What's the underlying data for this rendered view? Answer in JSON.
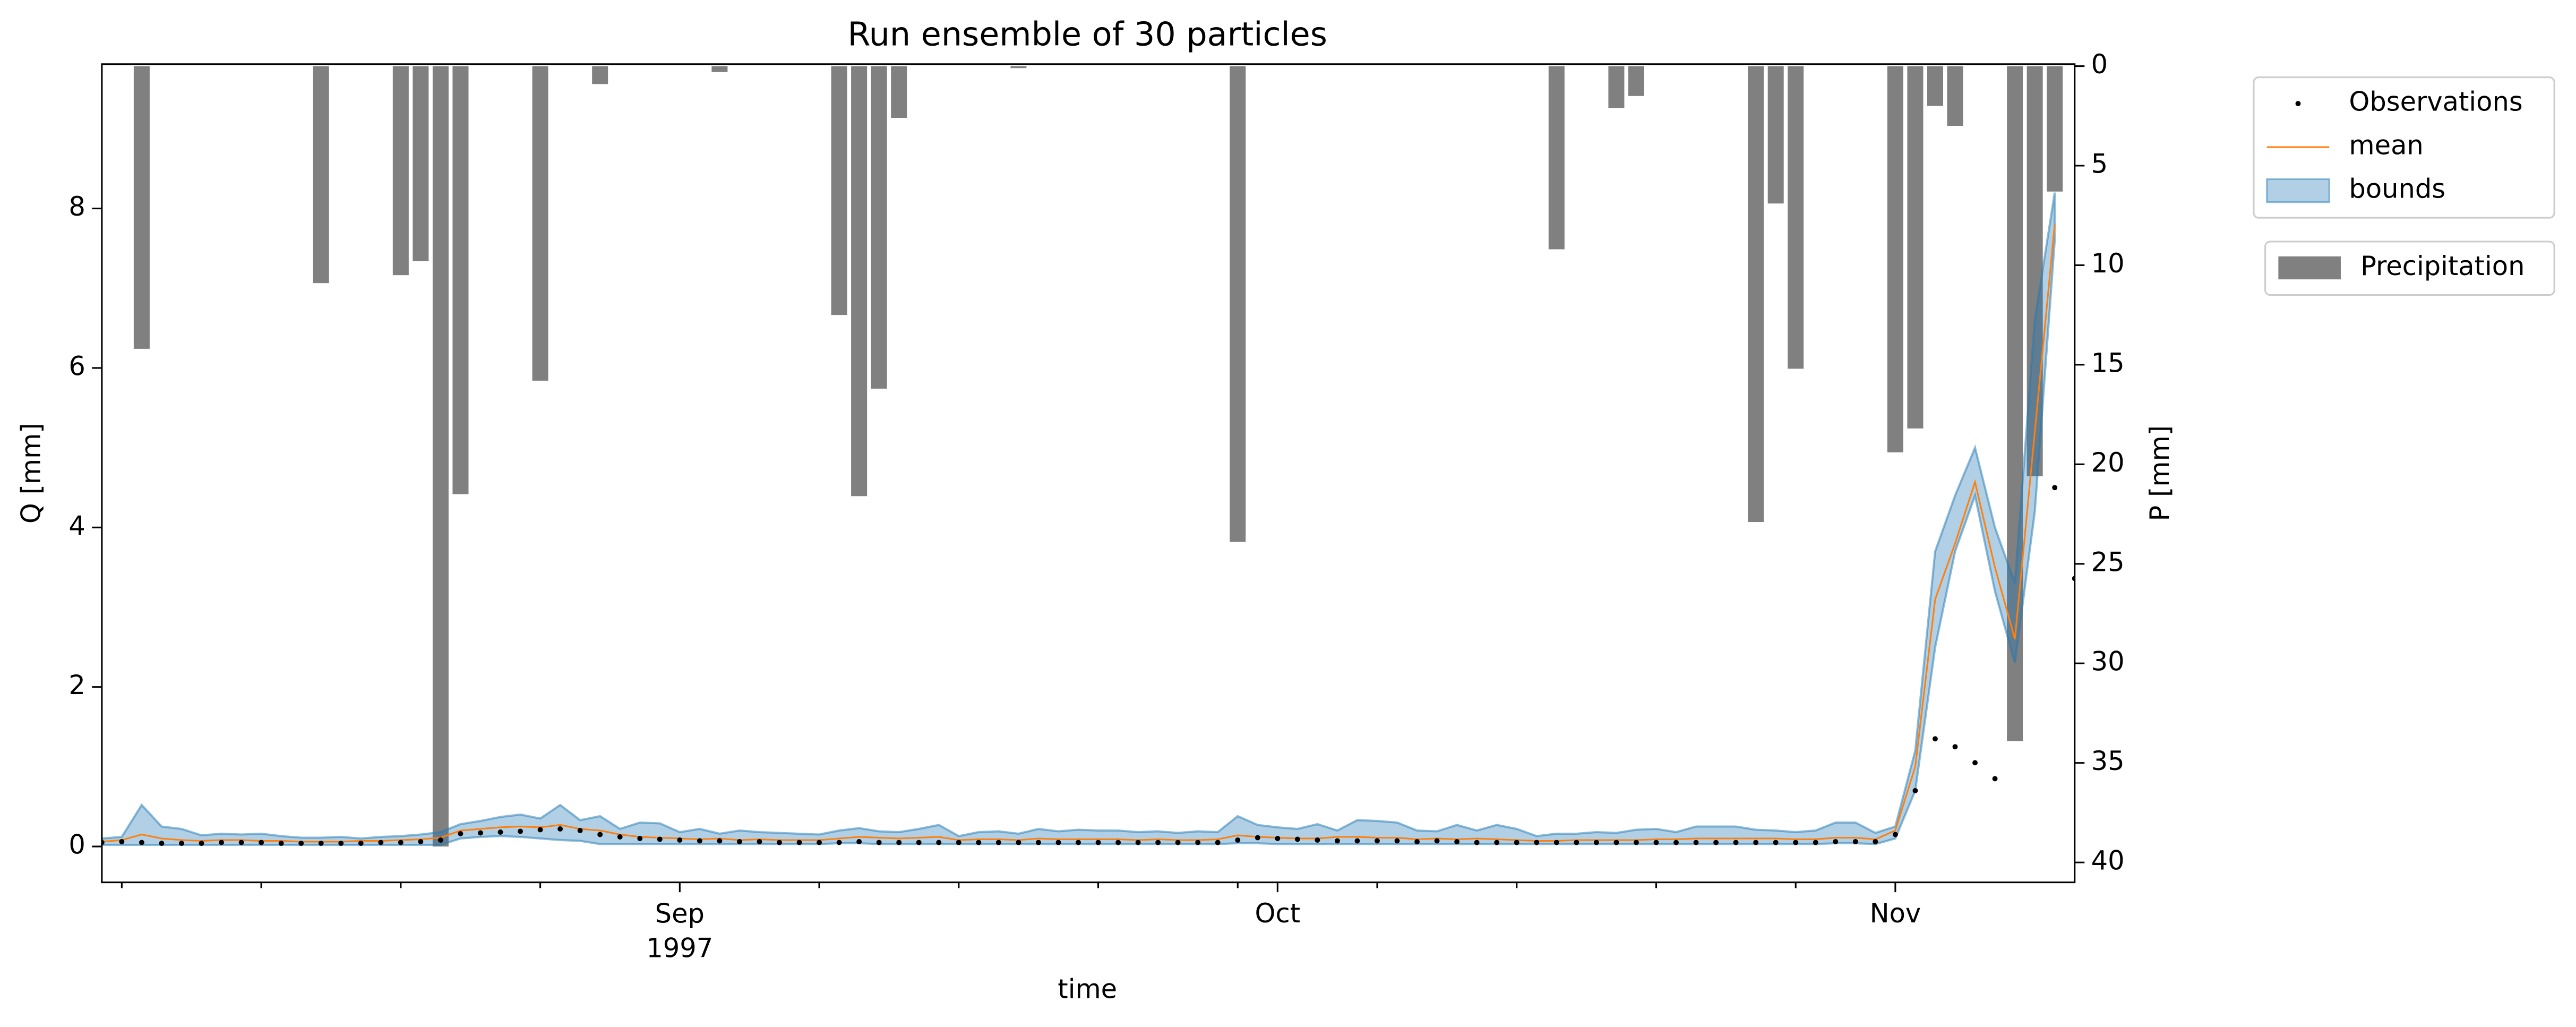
{
  "chart_data": {
    "type": "line",
    "title": "Run ensemble of 30 particles",
    "x_label": "time",
    "y_label": "Q [mm]",
    "y2_label": "P [mm]",
    "x": [
      0,
      1,
      2,
      3,
      4,
      5,
      6,
      7,
      8,
      9,
      10,
      11,
      12,
      13,
      14,
      15,
      16,
      17,
      18,
      19,
      20,
      21,
      22,
      23,
      24,
      25,
      26,
      27,
      28,
      29,
      30,
      31,
      32,
      33,
      34,
      35,
      36,
      37,
      38,
      39,
      40,
      41,
      42,
      43,
      44,
      45,
      46,
      47,
      48,
      49,
      50,
      51,
      52,
      53,
      54,
      55,
      56,
      57,
      58,
      59,
      60,
      61,
      62,
      63,
      64,
      65,
      66,
      67,
      68,
      69,
      70,
      71,
      72,
      73,
      74,
      75,
      76,
      77,
      78,
      79,
      80,
      81,
      82,
      83,
      84,
      85,
      86,
      87,
      88,
      89,
      90,
      91,
      92,
      93,
      94,
      95,
      96,
      97,
      98,
      99
    ],
    "xlim": [
      0,
      99
    ],
    "xticks": [
      {
        "value": 29,
        "label": "Sep\n1997"
      },
      {
        "value": 59,
        "label": "Oct"
      },
      {
        "value": 90,
        "label": "Nov"
      }
    ],
    "xminorticks": [
      1,
      8,
      15,
      22,
      36,
      43,
      50,
      57,
      64,
      71,
      78,
      85
    ],
    "ylim": [
      -0.45,
      9.81
    ],
    "yticks": [
      0,
      2,
      4,
      6,
      8
    ],
    "y2lim": [
      41,
      -0.1
    ],
    "y2ticks": [
      0,
      5,
      10,
      15,
      20,
      25,
      30,
      35,
      40
    ],
    "legend_loc": "outside upper right",
    "series": [
      {
        "name": "Observations",
        "type": "scatter",
        "color": "#000000",
        "values": [
          0.05,
          0.06,
          0.05,
          0.04,
          0.04,
          0.04,
          0.05,
          0.05,
          0.05,
          0.04,
          0.04,
          0.04,
          0.04,
          0.04,
          0.05,
          0.05,
          0.06,
          0.08,
          0.16,
          0.17,
          0.18,
          0.19,
          0.21,
          0.22,
          0.2,
          0.15,
          0.12,
          0.1,
          0.09,
          0.08,
          0.07,
          0.07,
          0.06,
          0.06,
          0.05,
          0.05,
          0.05,
          0.05,
          0.06,
          0.05,
          0.05,
          0.05,
          0.05,
          0.05,
          0.05,
          0.05,
          0.05,
          0.05,
          0.05,
          0.05,
          0.05,
          0.05,
          0.05,
          0.05,
          0.05,
          0.05,
          0.05,
          0.08,
          0.11,
          0.1,
          0.09,
          0.08,
          0.07,
          0.07,
          0.07,
          0.07,
          0.06,
          0.07,
          0.06,
          0.05,
          0.05,
          0.05,
          0.05,
          0.05,
          0.05,
          0.05,
          0.05,
          0.05,
          0.05,
          0.05,
          0.05,
          0.05,
          0.05,
          0.05,
          0.05,
          0.05,
          0.05,
          0.06,
          0.06,
          0.06,
          0.15,
          0.7,
          1.35,
          1.25,
          1.05,
          0.85,
          null,
          null,
          4.5,
          3.36
        ]
      },
      {
        "name": "mean",
        "type": "line",
        "color": "#ff7f0e",
        "values": [
          0.06,
          0.08,
          0.15,
          0.1,
          0.08,
          0.07,
          0.08,
          0.08,
          0.07,
          0.07,
          0.06,
          0.06,
          0.06,
          0.07,
          0.07,
          0.08,
          0.09,
          0.11,
          0.2,
          0.22,
          0.24,
          0.25,
          0.24,
          0.27,
          0.22,
          0.2,
          0.15,
          0.12,
          0.11,
          0.1,
          0.09,
          0.1,
          0.08,
          0.09,
          0.08,
          0.08,
          0.08,
          0.1,
          0.12,
          0.11,
          0.1,
          0.11,
          0.12,
          0.08,
          0.09,
          0.09,
          0.08,
          0.1,
          0.09,
          0.09,
          0.09,
          0.09,
          0.08,
          0.09,
          0.08,
          0.08,
          0.09,
          0.14,
          0.12,
          0.11,
          0.1,
          0.1,
          0.12,
          0.12,
          0.11,
          0.11,
          0.09,
          0.1,
          0.09,
          0.1,
          0.09,
          0.08,
          0.07,
          0.07,
          0.08,
          0.08,
          0.08,
          0.08,
          0.09,
          0.09,
          0.1,
          0.1,
          0.1,
          0.1,
          0.1,
          0.09,
          0.09,
          0.11,
          0.11,
          0.09,
          0.2,
          1.0,
          3.1,
          3.8,
          4.57,
          3.5,
          2.6,
          5.2,
          7.8,
          null
        ]
      },
      {
        "name": "bounds",
        "type": "area",
        "color": "#1f77b4",
        "lower": [
          0.02,
          0.02,
          0.02,
          0.02,
          0.02,
          0.02,
          0.02,
          0.02,
          0.02,
          0.02,
          0.02,
          0.02,
          0.02,
          0.02,
          0.02,
          0.02,
          0.02,
          0.02,
          0.1,
          0.12,
          0.13,
          0.12,
          0.1,
          0.08,
          0.07,
          0.03,
          0.03,
          0.03,
          0.03,
          0.03,
          0.03,
          0.03,
          0.03,
          0.03,
          0.03,
          0.03,
          0.03,
          0.04,
          0.04,
          0.03,
          0.03,
          0.03,
          0.03,
          0.03,
          0.03,
          0.03,
          0.03,
          0.03,
          0.03,
          0.03,
          0.03,
          0.03,
          0.03,
          0.03,
          0.03,
          0.03,
          0.03,
          0.04,
          0.04,
          0.03,
          0.03,
          0.03,
          0.03,
          0.03,
          0.03,
          0.03,
          0.03,
          0.03,
          0.03,
          0.03,
          0.03,
          0.03,
          0.03,
          0.03,
          0.03,
          0.03,
          0.03,
          0.03,
          0.03,
          0.03,
          0.03,
          0.03,
          0.03,
          0.03,
          0.03,
          0.03,
          0.03,
          0.04,
          0.04,
          0.03,
          0.1,
          0.7,
          2.5,
          3.7,
          4.4,
          3.2,
          2.3,
          4.2,
          7.6,
          null
        ],
        "upper": [
          0.1,
          0.12,
          0.52,
          0.25,
          0.22,
          0.14,
          0.16,
          0.15,
          0.16,
          0.13,
          0.11,
          0.11,
          0.12,
          0.1,
          0.12,
          0.13,
          0.15,
          0.18,
          0.28,
          0.32,
          0.37,
          0.4,
          0.35,
          0.52,
          0.33,
          0.38,
          0.22,
          0.3,
          0.29,
          0.18,
          0.22,
          0.16,
          0.2,
          0.18,
          0.17,
          0.16,
          0.15,
          0.2,
          0.23,
          0.19,
          0.18,
          0.22,
          0.27,
          0.13,
          0.18,
          0.19,
          0.16,
          0.22,
          0.19,
          0.21,
          0.2,
          0.2,
          0.18,
          0.19,
          0.17,
          0.19,
          0.18,
          0.38,
          0.27,
          0.24,
          0.22,
          0.28,
          0.2,
          0.33,
          0.32,
          0.3,
          0.2,
          0.19,
          0.27,
          0.2,
          0.27,
          0.22,
          0.13,
          0.16,
          0.16,
          0.18,
          0.17,
          0.21,
          0.22,
          0.18,
          0.25,
          0.25,
          0.25,
          0.21,
          0.2,
          0.18,
          0.2,
          0.3,
          0.3,
          0.17,
          0.25,
          1.2,
          3.7,
          4.4,
          5.0,
          4.0,
          3.3,
          6.6,
          8.2,
          null
        ]
      },
      {
        "name": "Precipitation",
        "type": "bar",
        "axis": "y2",
        "color": "#808080",
        "values": [
          0,
          0,
          14.2,
          0,
          0,
          0,
          0,
          0,
          0,
          0,
          0,
          10.9,
          0,
          0,
          0,
          10.5,
          9.8,
          39.2,
          21.5,
          0,
          0,
          0,
          15.8,
          0,
          0,
          0.9,
          0,
          0,
          0,
          0,
          0,
          0.3,
          0,
          0,
          0,
          0,
          0,
          12.5,
          21.6,
          16.2,
          2.6,
          0,
          0,
          0,
          0,
          0,
          0.1,
          0,
          0,
          0,
          0,
          0,
          0,
          0,
          0,
          0,
          0,
          23.9,
          0,
          0,
          0,
          0,
          0,
          0,
          0,
          0,
          0,
          0,
          0,
          0,
          0,
          0,
          0,
          9.2,
          0,
          0,
          2.1,
          1.5,
          0,
          0,
          0,
          0,
          0,
          22.9,
          6.9,
          15.2,
          0,
          0,
          0,
          0,
          19.4,
          18.2,
          2.0,
          3.0,
          0,
          0,
          33.9,
          20.6,
          6.3,
          0
        ]
      }
    ]
  }
}
